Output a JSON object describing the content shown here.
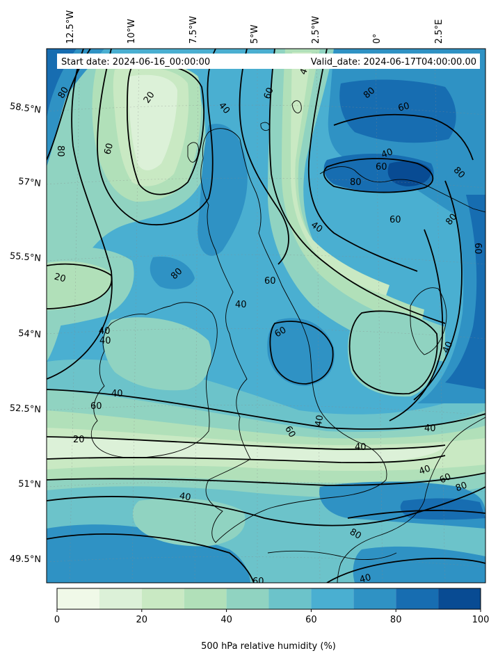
{
  "header": {
    "start_date": "Start date: 2024-06-16_00:00:00",
    "valid_date": "Valid_date: 2024-06-17T04:00:00.00"
  },
  "longitude_labels": [
    "12.5°W",
    "10°W",
    "7.5°W",
    "5°W",
    "2.5°W",
    "0°",
    "2.5°E"
  ],
  "latitude_labels": [
    "58.5°N",
    "57°N",
    "55.5°N",
    "54°N",
    "52.5°N",
    "51°N",
    "49.5°N"
  ],
  "contour_labels": [
    "80",
    "20",
    "40",
    "60",
    "60",
    "80",
    "40",
    "40",
    "40",
    "60",
    "80",
    "80",
    "80",
    "60",
    "20",
    "40",
    "60",
    "40",
    "40",
    "60",
    "60",
    "60",
    "40",
    "40",
    "60",
    "40",
    "60",
    "20",
    "40",
    "40",
    "40",
    "60",
    "80",
    "80",
    "40",
    "60",
    "40",
    "80",
    "80"
  ],
  "colorbar": {
    "title": "500 hPa relative humidity (%)",
    "ticks": [
      "0",
      "20",
      "40",
      "60",
      "80",
      "100"
    ],
    "levels": [
      0,
      10,
      20,
      30,
      40,
      50,
      60,
      70,
      80,
      90,
      100
    ],
    "colors": [
      "#f0f9e8",
      "#dcf1d8",
      "#c9e9c3",
      "#b1e0b9",
      "#90d3c1",
      "#6cc3ca",
      "#4aafd1",
      "#2f92c4",
      "#176db1",
      "#084b93"
    ]
  },
  "chart_data": {
    "type": "map",
    "variable": "500 hPa relative humidity (%)",
    "contour_levels": [
      20,
      40,
      60,
      80
    ],
    "fill_range": [
      0,
      100
    ]
  }
}
